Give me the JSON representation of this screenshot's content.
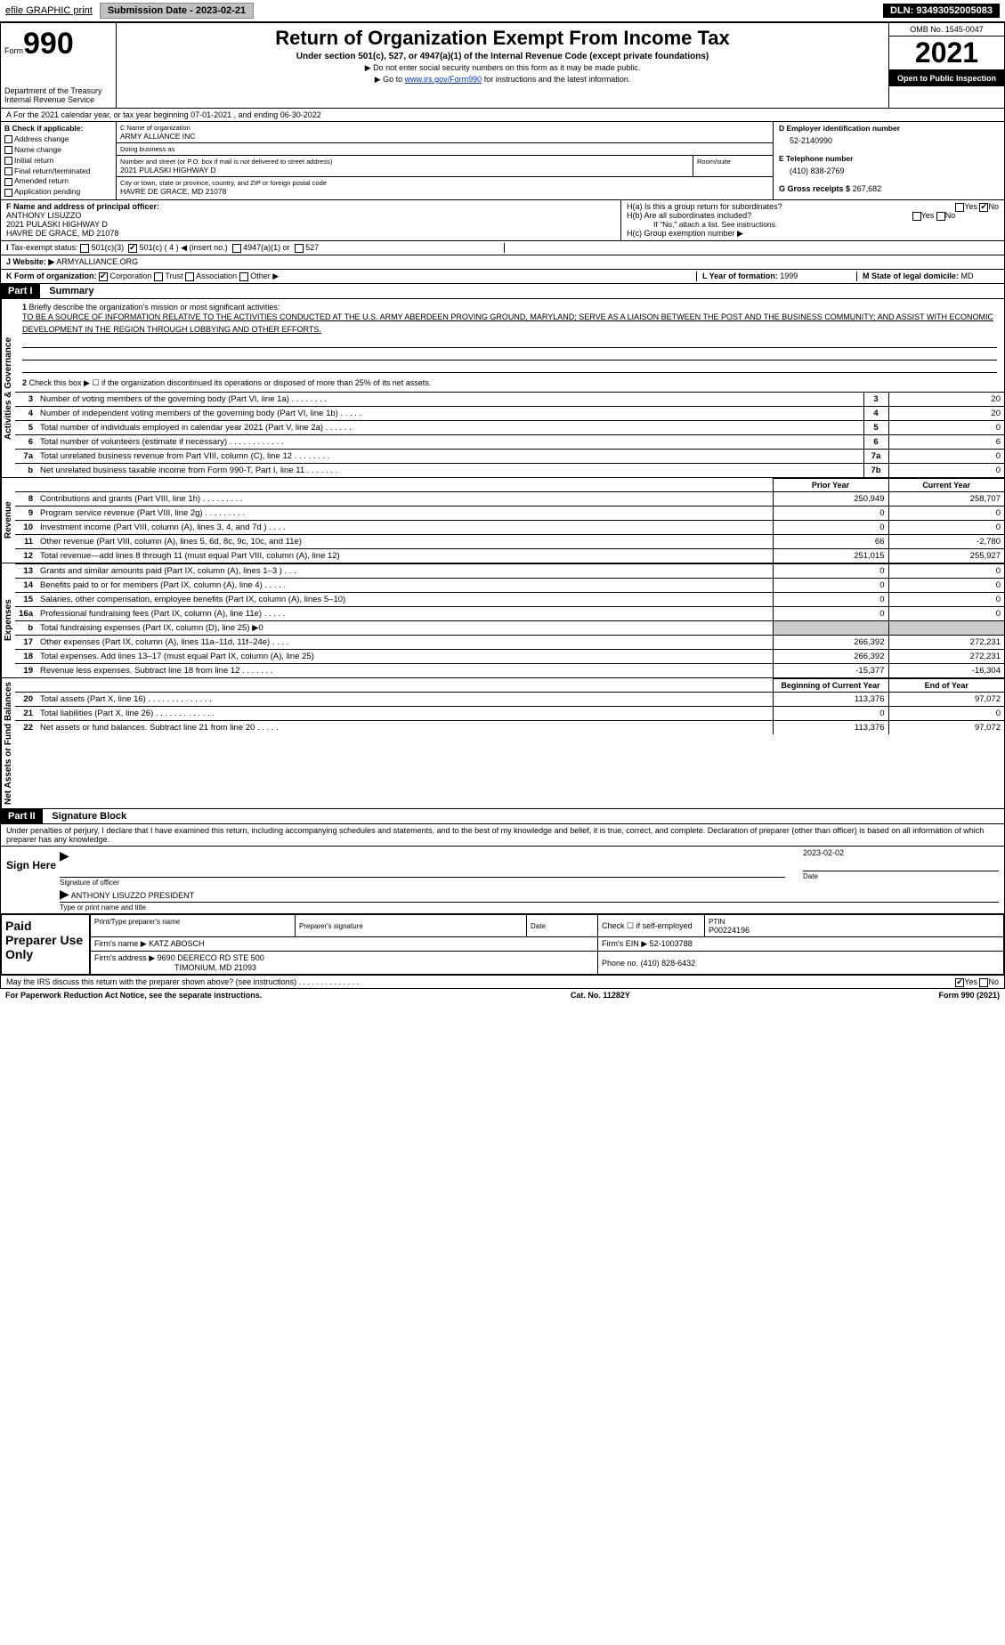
{
  "top": {
    "efile": "efile GRAPHIC print",
    "submission_label": "Submission Date - 2023-02-21",
    "dln": "DLN: 93493052005083"
  },
  "header": {
    "form_word": "Form",
    "form_num": "990",
    "dept": "Department of the Treasury",
    "irs": "Internal Revenue Service",
    "title": "Return of Organization Exempt From Income Tax",
    "subtitle": "Under section 501(c), 527, or 4947(a)(1) of the Internal Revenue Code (except private foundations)",
    "ssn_note": "▶ Do not enter social security numbers on this form as it may be made public.",
    "goto_pre": "▶ Go to ",
    "goto_link": "www.irs.gov/Form990",
    "goto_post": " for instructions and the latest information.",
    "omb": "OMB No. 1545-0047",
    "year": "2021",
    "open": "Open to Public Inspection"
  },
  "A": {
    "text": "A For the 2021 calendar year, or tax year beginning 07-01-2021     , and ending 06-30-2022"
  },
  "B": {
    "label": "B Check if applicable:",
    "items": [
      "Address change",
      "Name change",
      "Initial return",
      "Final return/terminated",
      "Amended return",
      "Application pending"
    ]
  },
  "C": {
    "name_lbl": "C Name of organization",
    "name": "ARMY ALLIANCE INC",
    "dba_lbl": "Doing business as",
    "dba": "",
    "addr_lbl": "Number and street (or P.O. box if mail is not delivered to street address)",
    "room_lbl": "Room/suite",
    "addr": "2021 PULASKI HIGHWAY D",
    "city_lbl": "City or town, state or province, country, and ZIP or foreign postal code",
    "city": "HAVRE DE GRACE, MD  21078"
  },
  "D": {
    "ein_lbl": "D Employer identification number",
    "ein": "52-2140990",
    "E_lbl": "E Telephone number",
    "E_val": "(410) 838-2769",
    "G_lbl": "G Gross receipts $",
    "G_val": "267,682"
  },
  "F": {
    "lbl": "F Name and address of principal officer:",
    "name": "ANTHONY LISUZZO",
    "addr1": "2021 PULASKI HIGHWAY D",
    "addr2": "HAVRE DE GRACE, MD  21078"
  },
  "H": {
    "a": "H(a)  Is this a group return for subordinates?",
    "b": "H(b)  Are all subordinates included?",
    "b_note": "If \"No,\" attach a list. See instructions.",
    "c": "H(c)  Group exemption number ▶",
    "yes": "Yes",
    "no": "No"
  },
  "I": {
    "lbl": "Tax-exempt status:",
    "o1": "501(c)(3)",
    "o2": "501(c) ( 4 ) ◀ (insert no.)",
    "o3": "4947(a)(1) or",
    "o4": "527"
  },
  "J": {
    "lbl": "Website: ▶",
    "val": "ARMYALLIANCE.ORG"
  },
  "K": {
    "lbl": "K Form of organization:",
    "opts": [
      "Corporation",
      "Trust",
      "Association",
      "Other ▶"
    ],
    "L_lbl": "L Year of formation:",
    "L_val": "1999",
    "M_lbl": "M State of legal domicile:",
    "M_val": "MD"
  },
  "partI": {
    "hdr": "Part I",
    "title": "Summary",
    "q1_lbl": "1",
    "q1_text": "Briefly describe the organization's mission or most significant activities:",
    "mission": "TO BE A SOURCE OF INFORMATION RELATIVE TO THE ACTIVITIES CONDUCTED AT THE U.S. ARMY ABERDEEN PROVING GROUND, MARYLAND; SERVE AS A LIAISON BETWEEN THE POST AND THE BUSINESS COMMUNITY; AND ASSIST WITH ECONOMIC DEVELOPMENT IN THE REGION THROUGH LOBBYING AND OTHER EFFORTS.",
    "q2": "Check this box ▶ ☐  if the organization discontinued its operations or disposed of more than 25% of its net assets.",
    "side_gov": "Activities & Governance",
    "side_rev": "Revenue",
    "side_exp": "Expenses",
    "side_net": "Net Assets or Fund Balances",
    "prior": "Prior Year",
    "current": "Current Year",
    "boy": "Beginning of Current Year",
    "eoy": "End of Year",
    "lines_gov": [
      {
        "n": "3",
        "d": "Number of voting members of the governing body (Part VI, line 1a)   .    .    .    .    .    .    .    .",
        "b": "3",
        "v": "20"
      },
      {
        "n": "4",
        "d": "Number of independent voting members of the governing body (Part VI, line 1b)  .    .    .    .    .",
        "b": "4",
        "v": "20"
      },
      {
        "n": "5",
        "d": "Total number of individuals employed in calendar year 2021 (Part V, line 2a)  .    .    .    .    .    .",
        "b": "5",
        "v": "0"
      },
      {
        "n": "6",
        "d": "Total number of volunteers (estimate if necessary)   .    .    .    .    .    .    .    .    .    .    .    .",
        "b": "6",
        "v": "6"
      },
      {
        "n": "7a",
        "d": "Total unrelated business revenue from Part VIII, column (C), line 12   .    .    .    .    .    .    .    .",
        "b": "7a",
        "v": "0"
      },
      {
        "n": "b",
        "d": "Net unrelated business taxable income from Form 990-T, Part I, line 11   .    .    .    .    .    .    .",
        "b": "7b",
        "v": "0"
      }
    ],
    "lines_rev": [
      {
        "n": "8",
        "d": "Contributions and grants (Part VIII, line 1h)   .    .    .    .    .    .    .    .    .",
        "p": "250,949",
        "c": "258,707"
      },
      {
        "n": "9",
        "d": "Program service revenue (Part VIII, line 2g)   .    .    .    .    .    .    .    .    .",
        "p": "0",
        "c": "0"
      },
      {
        "n": "10",
        "d": "Investment income (Part VIII, column (A), lines 3, 4, and 7d )   .    .    .    .",
        "p": "0",
        "c": "0"
      },
      {
        "n": "11",
        "d": "Other revenue (Part VIII, column (A), lines 5, 6d, 8c, 9c, 10c, and 11e)",
        "p": "66",
        "c": "-2,780"
      },
      {
        "n": "12",
        "d": "Total revenue—add lines 8 through 11 (must equal Part VIII, column (A), line 12)",
        "p": "251,015",
        "c": "255,927"
      }
    ],
    "lines_exp": [
      {
        "n": "13",
        "d": "Grants and similar amounts paid (Part IX, column (A), lines 1–3 )   .    .    .",
        "p": "0",
        "c": "0"
      },
      {
        "n": "14",
        "d": "Benefits paid to or for members (Part IX, column (A), line 4)  .    .    .    .    .",
        "p": "0",
        "c": "0"
      },
      {
        "n": "15",
        "d": "Salaries, other compensation, employee benefits (Part IX, column (A), lines 5–10)",
        "p": "0",
        "c": "0"
      },
      {
        "n": "16a",
        "d": "Professional fundraising fees (Part IX, column (A), line 11e)  .    .    .    .    .",
        "p": "0",
        "c": "0"
      },
      {
        "n": "b",
        "d": "Total fundraising expenses (Part IX, column (D), line 25) ▶0",
        "p": "",
        "c": ""
      },
      {
        "n": "17",
        "d": "Other expenses (Part IX, column (A), lines 11a–11d, 11f–24e)   .    .    .    .",
        "p": "266,392",
        "c": "272,231"
      },
      {
        "n": "18",
        "d": "Total expenses. Add lines 13–17 (must equal Part IX, column (A), line 25)",
        "p": "266,392",
        "c": "272,231"
      },
      {
        "n": "19",
        "d": "Revenue less expenses. Subtract line 18 from line 12  .    .    .    .    .    .    .",
        "p": "-15,377",
        "c": "-16,304"
      }
    ],
    "lines_net": [
      {
        "n": "20",
        "d": "Total assets (Part X, line 16)  .    .    .    .    .    .    .    .    .    .    .    .    .    .",
        "p": "113,376",
        "c": "97,072"
      },
      {
        "n": "21",
        "d": "Total liabilities (Part X, line 26)  .    .    .    .    .    .    .    .    .    .    .    .    .",
        "p": "0",
        "c": "0"
      },
      {
        "n": "22",
        "d": "Net assets or fund balances. Subtract line 21 from line 20   .    .    .    .    .",
        "p": "113,376",
        "c": "97,072"
      }
    ]
  },
  "partII": {
    "hdr": "Part II",
    "title": "Signature Block",
    "penalty": "Under penalties of perjury, I declare that I have examined this return, including accompanying schedules and statements, and to the best of my knowledge and belief, it is true, correct, and complete. Declaration of preparer (other than officer) is based on all information of which preparer has any knowledge.",
    "sign_here": "Sign Here",
    "sig_officer": "Signature of officer",
    "date": "Date",
    "date_val": "2023-02-02",
    "name_title": "ANTHONY LISUZZO  PRESIDENT",
    "type_name": "Type or print name and title",
    "paid": "Paid Preparer Use Only",
    "pp_name_lbl": "Print/Type preparer's name",
    "pp_sig_lbl": "Preparer's signature",
    "pp_date_lbl": "Date",
    "pp_check": "Check ☐ if self-employed",
    "ptin_lbl": "PTIN",
    "ptin": "P00224196",
    "firm_name_lbl": "Firm's name     ▶",
    "firm_name": "KATZ ABOSCH",
    "firm_ein_lbl": "Firm's EIN ▶",
    "firm_ein": "52-1003788",
    "firm_addr_lbl": "Firm's address ▶",
    "firm_addr": "9690 DEERECO RD STE 500",
    "firm_city": "TIMONIUM, MD  21093",
    "phone_lbl": "Phone no.",
    "phone": "(410) 828-6432",
    "discuss": "May the IRS discuss this return with the preparer shown above? (see instructions)   .    .    .    .    .    .    .    .    .    .    .    .    .    .",
    "yes": "Yes",
    "no": "No"
  },
  "footer": {
    "pra": "For Paperwork Reduction Act Notice, see the separate instructions.",
    "cat": "Cat. No. 11282Y",
    "form": "Form 990 (2021)"
  }
}
